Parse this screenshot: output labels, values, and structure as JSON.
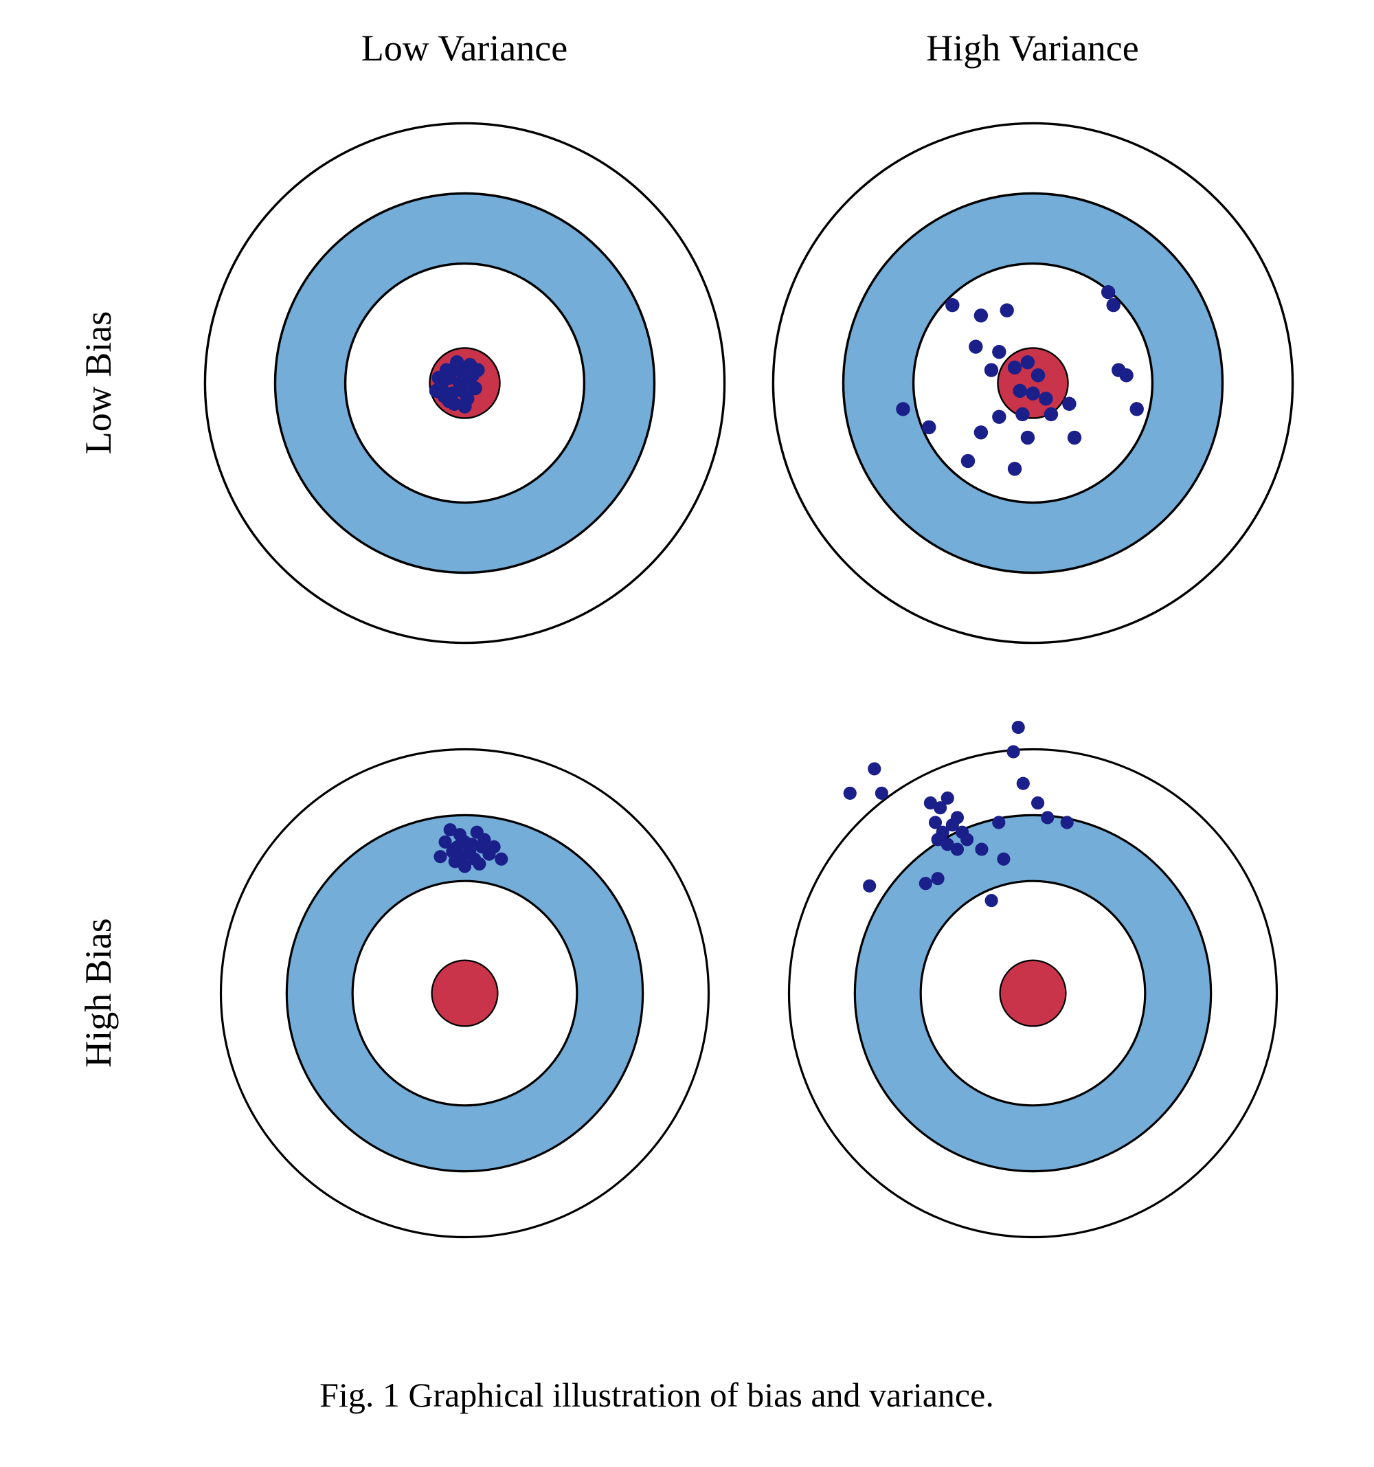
{
  "figure": {
    "caption": "Fig. 1 Graphical illustration of bias and variance.",
    "col_labels": [
      "Low Variance",
      "High Variance"
    ],
    "row_labels": [
      "Low Bias",
      "High Bias"
    ]
  },
  "colors": {
    "ring_blue": "#74add7",
    "bullseye_red": "#c9344b",
    "dot_navy": "#1b1f8a",
    "outline": "#000000",
    "background": "#ffffff"
  },
  "target_geometry": {
    "ring_radii": {
      "outer": 1.0,
      "blue_outer": 0.73,
      "blue_inner": 0.46,
      "bullseye": 0.135
    },
    "dot_radius": 0.027,
    "outline_width": 0.009
  },
  "targets": [
    {
      "id": "low-bias-low-variance",
      "row": "Low Bias",
      "col": "Low Variance",
      "dots": [
        [
          -0.06,
          -0.02
        ],
        [
          -0.02,
          -0.05
        ],
        [
          0.0,
          -0.01
        ],
        [
          -0.09,
          0.01
        ],
        [
          -0.05,
          0.04
        ],
        [
          -0.01,
          0.03
        ],
        [
          0.03,
          -0.03
        ],
        [
          -0.03,
          -0.08
        ],
        [
          -0.07,
          -0.05
        ],
        [
          0.01,
          0.06
        ],
        [
          -0.04,
          0.08
        ],
        [
          -0.08,
          0.05
        ],
        [
          0.04,
          0.02
        ],
        [
          0.0,
          0.09
        ],
        [
          -0.1,
          -0.02
        ],
        [
          -0.02,
          0.0
        ],
        [
          0.02,
          -0.07
        ],
        [
          -0.06,
          0.07
        ],
        [
          -0.11,
          0.03
        ],
        [
          0.05,
          -0.05
        ]
      ]
    },
    {
      "id": "low-bias-high-variance",
      "row": "Low Bias",
      "col": "High Variance",
      "dots": [
        [
          -0.2,
          -0.26
        ],
        [
          -0.31,
          -0.3
        ],
        [
          -0.1,
          -0.28
        ],
        [
          0.29,
          -0.35
        ],
        [
          0.31,
          -0.3
        ],
        [
          -0.22,
          -0.14
        ],
        [
          -0.16,
          -0.05
        ],
        [
          -0.13,
          -0.12
        ],
        [
          -0.07,
          -0.06
        ],
        [
          -0.02,
          -0.08
        ],
        [
          0.02,
          -0.03
        ],
        [
          -0.05,
          0.03
        ],
        [
          0.0,
          0.04
        ],
        [
          0.05,
          0.06
        ],
        [
          -0.04,
          0.12
        ],
        [
          -0.13,
          0.13
        ],
        [
          -0.2,
          0.19
        ],
        [
          -0.02,
          0.21
        ],
        [
          0.07,
          0.12
        ],
        [
          0.14,
          0.08
        ],
        [
          0.33,
          -0.05
        ],
        [
          0.36,
          -0.03
        ],
        [
          0.4,
          0.1
        ],
        [
          0.16,
          0.21
        ],
        [
          -0.25,
          0.3
        ],
        [
          -0.5,
          0.1
        ],
        [
          -0.4,
          0.17
        ],
        [
          -0.07,
          0.33
        ]
      ]
    },
    {
      "id": "high-bias-low-variance",
      "row": "High Bias",
      "col": "Low Variance",
      "dots": [
        [
          0.0,
          -0.62
        ],
        [
          -0.05,
          -0.58
        ],
        [
          0.04,
          -0.55
        ],
        [
          -0.02,
          -0.65
        ],
        [
          0.07,
          -0.6
        ],
        [
          -0.08,
          -0.62
        ],
        [
          0.02,
          -0.58
        ],
        [
          0.1,
          -0.57
        ],
        [
          -0.04,
          -0.54
        ],
        [
          0.05,
          -0.66
        ],
        [
          -0.1,
          -0.56
        ],
        [
          0.0,
          -0.52
        ],
        [
          0.08,
          -0.63
        ],
        [
          -0.06,
          -0.67
        ],
        [
          0.12,
          -0.6
        ],
        [
          0.03,
          -0.61
        ],
        [
          -0.01,
          -0.56
        ],
        [
          0.15,
          -0.55
        ],
        [
          -0.03,
          -0.6
        ],
        [
          0.06,
          -0.53
        ]
      ]
    },
    {
      "id": "high-bias-high-variance",
      "row": "High Bias",
      "col": "High Variance",
      "dots": [
        [
          -0.06,
          -1.09
        ],
        [
          -0.08,
          -0.99
        ],
        [
          -0.62,
          -0.82
        ],
        [
          -0.65,
          -0.92
        ],
        [
          -0.75,
          -0.82
        ],
        [
          -0.42,
          -0.78
        ],
        [
          -0.38,
          -0.76
        ],
        [
          -0.35,
          -0.8
        ],
        [
          -0.31,
          -0.72
        ],
        [
          -0.4,
          -0.7
        ],
        [
          -0.37,
          -0.66
        ],
        [
          -0.33,
          -0.69
        ],
        [
          -0.29,
          -0.66
        ],
        [
          -0.39,
          -0.63
        ],
        [
          -0.35,
          -0.61
        ],
        [
          -0.31,
          -0.59
        ],
        [
          -0.27,
          -0.63
        ],
        [
          -0.04,
          -0.86
        ],
        [
          0.02,
          -0.78
        ],
        [
          0.06,
          -0.72
        ],
        [
          0.14,
          -0.7
        ],
        [
          -0.14,
          -0.7
        ],
        [
          -0.21,
          -0.59
        ],
        [
          -0.12,
          -0.55
        ],
        [
          -0.44,
          -0.45
        ],
        [
          -0.67,
          -0.44
        ],
        [
          -0.17,
          -0.38
        ],
        [
          -0.39,
          -0.47
        ]
      ]
    }
  ]
}
